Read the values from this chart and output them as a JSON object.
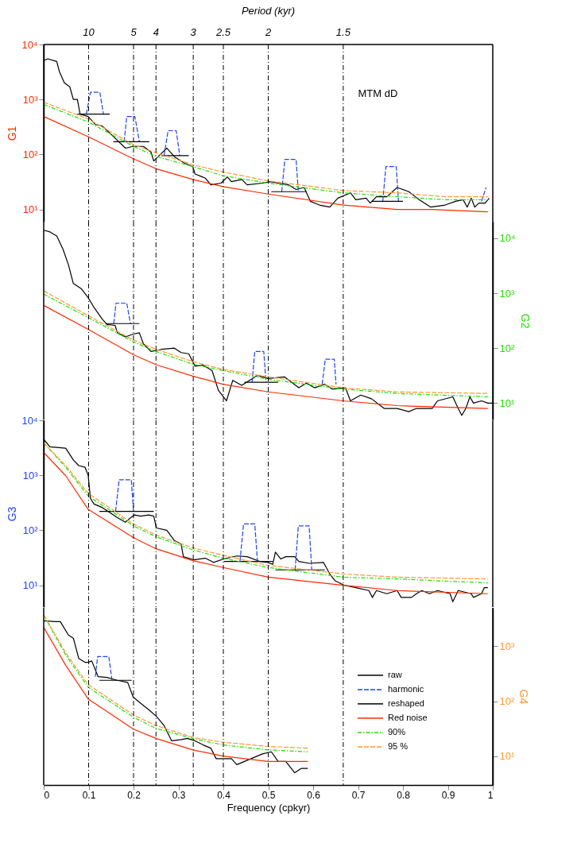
{
  "chart_data": [
    {
      "type": "line",
      "ylabel": "G1",
      "xlim": [
        0,
        1
      ],
      "ylim": [
        6,
        10000
      ],
      "yticks": [
        {
          "value": 10,
          "label": "10¹"
        },
        {
          "value": 100,
          "label": "10²"
        },
        {
          "value": 1000,
          "label": "10³"
        },
        {
          "value": 10000,
          "label": "10⁴"
        }
      ],
      "log": true,
      "tick_labels": "y",
      "annotations": [
        "Period (kyr)",
        "MTM dD",
        {
          "text": "10",
          "x": 0.1,
          "y": 10000
        },
        {
          "text": "5",
          "x": 0.2,
          "y": 10000
        },
        {
          "text": "4",
          "x": 0.25,
          "y": 10000
        },
        {
          "text": "3",
          "x": 0.333,
          "y": 10000
        },
        {
          "text": "2.5",
          "x": 0.4,
          "y": 10000
        },
        {
          "text": "2",
          "x": 0.5,
          "y": 10000
        },
        {
          "text": "1.5",
          "x": 0.667,
          "y": 10000
        }
      ],
      "ref_lines": [
        {
          "axis": "x",
          "value": 0.1,
          "line_style": "dashed"
        },
        {
          "axis": "x",
          "value": 0.2,
          "line_style": "dashed"
        },
        {
          "axis": "x",
          "value": 0.25,
          "line_style": "dashed"
        },
        {
          "axis": "x",
          "value": 0.333,
          "line_style": "dashed"
        },
        {
          "axis": "x",
          "value": 0.4,
          "line_style": "dashed"
        },
        {
          "axis": "x",
          "value": 0.5,
          "line_style": "dashed"
        },
        {
          "axis": "x",
          "value": 0.667,
          "line_style": "dashed"
        }
      ],
      "series": [
        {
          "color": "#000000",
          "line_style": "solid",
          "x": [
            0,
            0.009,
            0.029,
            0.035,
            0.046,
            0.058,
            0.066,
            0.075,
            0.081,
            0.099,
            0.115,
            0.13,
            0.153,
            0.182,
            0.199,
            0.222,
            0.239,
            0.245,
            0.257,
            0.274,
            0.291,
            0.314,
            0.332,
            0.337,
            0.36,
            0.372,
            0.395,
            0.409,
            0.418,
            0.441,
            0.453,
            0.487,
            0.505,
            0.522,
            0.545,
            0.562,
            0.58,
            0.594,
            0.614,
            0.637,
            0.655,
            0.683,
            0.695,
            0.718,
            0.727,
            0.741,
            0.764,
            0.787,
            0.813,
            0.836,
            0.862,
            0.894,
            0.917,
            0.934,
            0.943,
            0.952,
            0.96,
            0.969,
            0.983,
            0.992
          ],
          "values": [
            5100,
            5500,
            4900,
            3200,
            2000,
            1700,
            1000,
            1000,
            540,
            490,
            350,
            330,
            220,
            130,
            140,
            140,
            110,
            76,
            95,
            130,
            91,
            69,
            60,
            44,
            37,
            28,
            30,
            39,
            32,
            35,
            28,
            30,
            32,
            30,
            28,
            23,
            25,
            14,
            12,
            11,
            16,
            20,
            15,
            16,
            13,
            17,
            17,
            25,
            21,
            15,
            11,
            12,
            14,
            15,
            11,
            16,
            11,
            13,
            13,
            16
          ]
        },
        {
          "color": "#2244ee",
          "line_style": "dashed",
          "x": [
            0.095,
            0.104,
            0.125,
            0.133,
            0.155,
            0.179,
            0.185,
            0.203,
            0.213,
            0.24,
            0.268,
            0.277,
            0.295,
            0.303,
            0.4,
            0.53,
            0.537,
            0.562,
            0.567,
            0.65,
            0.755,
            0.762,
            0.785,
            0.79,
            0.9,
            0.975,
            0.985
          ],
          "values": [
            540,
            1350,
            1350,
            540,
            null,
            170,
            490,
            490,
            170,
            null,
            95,
            270,
            270,
            95,
            null,
            21,
            81,
            81,
            21,
            null,
            14,
            60,
            60,
            14,
            null,
            14,
            25
          ]
        },
        {
          "color": "#000000",
          "line_style": "solid",
          "x": [
            0.075,
            0.147,
            0.151,
            0.155,
            0.235,
            0.25,
            0.262,
            0.323,
            0.4,
            0.507,
            0.585,
            0.65,
            0.73,
            0.8
          ],
          "values": [
            540,
            540,
            null,
            170,
            170,
            null,
            95,
            95,
            null,
            21,
            21,
            null,
            14,
            14
          ]
        },
        {
          "color": "#ff2a00",
          "line_style": "solid",
          "x": [
            0,
            0.099,
            0.2,
            0.25,
            0.332,
            0.399,
            0.5,
            0.667,
            0.787,
            0.862,
            0.989
          ],
          "values": [
            490,
            210,
            83,
            55,
            35,
            26,
            19,
            12,
            10,
            10,
            9
          ]
        },
        {
          "color": "#22dd00",
          "line_style": "dotted",
          "x": [
            0,
            0.099,
            0.2,
            0.25,
            0.332,
            0.399,
            0.5,
            0.667,
            0.787,
            0.894,
            0.989
          ],
          "values": [
            810,
            390,
            140,
            92,
            60,
            41,
            30,
            20,
            17,
            15,
            15
          ]
        },
        {
          "color": "#ff9933",
          "line_style": "dashed",
          "x": [
            0,
            0.099,
            0.2,
            0.25,
            0.332,
            0.399,
            0.5,
            0.667,
            0.787,
            0.894,
            0.989
          ],
          "values": [
            890,
            440,
            150,
            107,
            65,
            48,
            33,
            22,
            20,
            17,
            17
          ]
        }
      ]
    },
    {
      "type": "line",
      "ylabel": "G2",
      "xlim": [
        0,
        1
      ],
      "ylim": [
        5,
        20000
      ],
      "yticks": [
        {
          "value": 10,
          "label": "10¹"
        },
        {
          "value": 100,
          "label": "10²"
        },
        {
          "value": 1000,
          "label": "10³"
        },
        {
          "value": 10000,
          "label": "10⁴"
        }
      ],
      "log": true,
      "tick_labels": "y",
      "ref_lines": [
        {
          "axis": "x",
          "value": 0.1,
          "line_style": "dashed"
        },
        {
          "axis": "x",
          "value": 0.2,
          "line_style": "dashed"
        },
        {
          "axis": "x",
          "value": 0.25,
          "line_style": "dashed"
        },
        {
          "axis": "x",
          "value": 0.333,
          "line_style": "dashed"
        },
        {
          "axis": "x",
          "value": 0.4,
          "line_style": "dashed"
        },
        {
          "axis": "x",
          "value": 0.5,
          "line_style": "dashed"
        },
        {
          "axis": "x",
          "value": 0.667,
          "line_style": "dashed"
        }
      ],
      "series": [
        {
          "color": "#000000",
          "line_style": "solid",
          "x": [
            0,
            0.014,
            0.029,
            0.043,
            0.055,
            0.066,
            0.084,
            0.099,
            0.112,
            0.13,
            0.141,
            0.159,
            0.164,
            0.182,
            0.199,
            0.213,
            0.222,
            0.239,
            0.262,
            0.291,
            0.306,
            0.323,
            0.337,
            0.355,
            0.375,
            0.389,
            0.407,
            0.421,
            0.441,
            0.476,
            0.499,
            0.536,
            0.568,
            0.585,
            0.603,
            0.626,
            0.643,
            0.672,
            0.683,
            0.706,
            0.73,
            0.758,
            0.787,
            0.813,
            0.83,
            0.865,
            0.877,
            0.911,
            0.923,
            0.931,
            0.94,
            0.949,
            0.957,
            0.975,
            0.989,
            1
          ],
          "values": [
            14000,
            13000,
            11000,
            6300,
            3300,
            1500,
            1200,
            830,
            550,
            340,
            270,
            260,
            190,
            160,
            180,
            190,
            120,
            87,
            95,
            100,
            83,
            79,
            47,
            49,
            39,
            17,
            11,
            26,
            21,
            32,
            28,
            30,
            19,
            23,
            19,
            22,
            18,
            19,
            11,
            14,
            12,
            8,
            8,
            7,
            8,
            8,
            11,
            13,
            8,
            6,
            8,
            13,
            10,
            11,
            10,
            10
          ]
        },
        {
          "color": "#2244ee",
          "line_style": "dashed",
          "x": [
            0.156,
            0.161,
            0.185,
            0.193,
            0.3,
            0.464,
            0.47,
            0.49,
            0.495,
            0.55,
            0.62,
            0.627,
            0.647,
            0.651
          ],
          "values": [
            280,
            660,
            660,
            280,
            null,
            24,
            87,
            87,
            24,
            null,
            22,
            63,
            63,
            22
          ]
        },
        {
          "color": "#000000",
          "line_style": "solid",
          "x": [
            0.138,
            0.213,
            0.3,
            0.447,
            0.522
          ],
          "values": [
            280,
            280,
            null,
            24,
            24
          ]
        },
        {
          "color": "#ff2a00",
          "line_style": "solid",
          "x": [
            0,
            0.099,
            0.2,
            0.25,
            0.332,
            0.399,
            0.5,
            0.667,
            0.787,
            0.989
          ],
          "values": [
            600,
            220,
            76,
            50,
            31,
            22,
            16,
            11,
            9,
            8
          ]
        },
        {
          "color": "#22dd00",
          "line_style": "dotted",
          "x": [
            0,
            0.099,
            0.2,
            0.25,
            0.332,
            0.399,
            0.5,
            0.667,
            0.787,
            0.989
          ],
          "values": [
            960,
            360,
            130,
            87,
            51,
            39,
            27,
            18,
            15,
            13
          ]
        },
        {
          "color": "#ff9933",
          "line_style": "dashed",
          "x": [
            0,
            0.099,
            0.2,
            0.25,
            0.332,
            0.399,
            0.5,
            0.667,
            0.787,
            0.989
          ],
          "values": [
            1100,
            390,
            140,
            95,
            57,
            41,
            30,
            19,
            16,
            15
          ]
        }
      ]
    },
    {
      "type": "line",
      "ylabel": "G3",
      "xlim": [
        0,
        1
      ],
      "ylim": [
        4,
        10000
      ],
      "yticks": [
        {
          "value": 10,
          "label": "10¹"
        },
        {
          "value": 100,
          "label": "10²"
        },
        {
          "value": 1000,
          "label": "10³"
        },
        {
          "value": 10000,
          "label": "10⁴"
        }
      ],
      "log": true,
      "tick_labels": "y",
      "ref_lines": [
        {
          "axis": "x",
          "value": 0.1,
          "line_style": "dashed"
        },
        {
          "axis": "x",
          "value": 0.2,
          "line_style": "dashed"
        },
        {
          "axis": "x",
          "value": 0.25,
          "line_style": "dashed"
        },
        {
          "axis": "x",
          "value": 0.333,
          "line_style": "dashed"
        },
        {
          "axis": "x",
          "value": 0.4,
          "line_style": "dashed"
        },
        {
          "axis": "x",
          "value": 0.5,
          "line_style": "dashed"
        },
        {
          "axis": "x",
          "value": 0.667,
          "line_style": "dashed"
        }
      ],
      "series": [
        {
          "color": "#000000",
          "line_style": "solid",
          "x": [
            0,
            0.014,
            0.049,
            0.066,
            0.078,
            0.092,
            0.099,
            0.104,
            0.112,
            0.13,
            0.147,
            0.164,
            0.182,
            0.19,
            0.202,
            0.216,
            0.234,
            0.245,
            0.251,
            0.274,
            0.291,
            0.306,
            0.311,
            0.334,
            0.36,
            0.378,
            0.401,
            0.43,
            0.453,
            0.482,
            0.499,
            0.51,
            0.516,
            0.528,
            0.539,
            0.559,
            0.568,
            0.591,
            0.623,
            0.637,
            0.649,
            0.669,
            0.695,
            0.724,
            0.732,
            0.741,
            0.764,
            0.787,
            0.796,
            0.819,
            0.83,
            0.842,
            0.859,
            0.877,
            0.905,
            0.911,
            0.923,
            0.952,
            0.957,
            0.975,
            0.981,
            0.989
          ],
          "values": [
            4500,
            3300,
            3100,
            1900,
            1500,
            1400,
            1000,
            380,
            300,
            260,
            210,
            170,
            140,
            160,
            190,
            180,
            190,
            180,
            110,
            100,
            65,
            56,
            33,
            29,
            31,
            26,
            30,
            34,
            33,
            27,
            26,
            24,
            40,
            30,
            33,
            33,
            27,
            25,
            26,
            16,
            12,
            10,
            9,
            8,
            6,
            8,
            7,
            8,
            6,
            6,
            7,
            8,
            7,
            8,
            7,
            5,
            8,
            7,
            6,
            7,
            9,
            9
          ]
        },
        {
          "color": "#2244ee",
          "line_style": "dashed",
          "x": [
            0.16,
            0.168,
            0.195,
            0.2,
            0.3,
            0.437,
            0.445,
            0.47,
            0.476,
            0.52,
            0.56,
            0.567,
            0.591,
            0.597
          ],
          "values": [
            220,
            830,
            830,
            220,
            null,
            27,
            130,
            130,
            27,
            null,
            19,
            120,
            120,
            19
          ]
        },
        {
          "color": "#000000",
          "line_style": "solid",
          "x": [
            0.124,
            0.245,
            0.3,
            0.401,
            0.51,
            0.513,
            0.516,
            0.626
          ],
          "values": [
            220,
            220,
            null,
            27,
            27,
            null,
            19,
            19
          ]
        },
        {
          "color": "#ff2a00",
          "line_style": "solid",
          "x": [
            0,
            0.049,
            0.099,
            0.2,
            0.25,
            0.332,
            0.399,
            0.5,
            0.667,
            0.787,
            0.989
          ],
          "values": [
            2600,
            980,
            240,
            73,
            46,
            28,
            21,
            14,
            10,
            8,
            7
          ]
        },
        {
          "color": "#22dd00",
          "line_style": "dotted",
          "x": [
            0,
            0.049,
            0.099,
            0.2,
            0.25,
            0.332,
            0.399,
            0.5,
            0.667,
            0.787,
            0.989
          ],
          "values": [
            3900,
            1400,
            420,
            120,
            76,
            44,
            31,
            21,
            14,
            13,
            11
          ]
        },
        {
          "color": "#ff9933",
          "line_style": "dashed",
          "x": [
            0,
            0.049,
            0.099,
            0.2,
            0.25,
            0.332,
            0.399,
            0.5,
            0.667,
            0.787,
            0.989
          ],
          "values": [
            3900,
            1500,
            470,
            130,
            82,
            48,
            35,
            23,
            16,
            14,
            13
          ]
        }
      ]
    },
    {
      "type": "line",
      "ylabel": "G4",
      "xlabel": "Frequency (cpkyr)",
      "xlim": [
        0,
        1
      ],
      "xticks": [
        0,
        0.1,
        0.2,
        0.3,
        0.4,
        0.5,
        0.6,
        0.7,
        0.8,
        0.9,
        1
      ],
      "ylim": [
        3,
        5000
      ],
      "yticks": [
        {
          "value": 10,
          "label": "10¹"
        },
        {
          "value": 100,
          "label": "10²"
        },
        {
          "value": 1000,
          "label": "10³"
        }
      ],
      "log": true,
      "legend": "bottom right",
      "ref_lines": [
        {
          "axis": "x",
          "value": 0.1,
          "line_style": "dashed"
        },
        {
          "axis": "x",
          "value": 0.2,
          "line_style": "dashed"
        },
        {
          "axis": "x",
          "value": 0.25,
          "line_style": "dashed"
        },
        {
          "axis": "x",
          "value": 0.333,
          "line_style": "dashed"
        },
        {
          "axis": "x",
          "value": 0.4,
          "line_style": "dashed"
        },
        {
          "axis": "x",
          "value": 0.5,
          "line_style": "dashed"
        },
        {
          "axis": "x",
          "value": 0.667,
          "line_style": "dashed"
        }
      ],
      "series": [
        {
          "name": "raw",
          "color": "#000000",
          "line_style": "solid",
          "x": [
            0,
            0.026,
            0.037,
            0.055,
            0.066,
            0.078,
            0.092,
            0.099,
            0.107,
            0.121,
            0.141,
            0.164,
            0.187,
            0.199,
            0.21,
            0.234,
            0.251,
            0.268,
            0.285,
            0.306,
            0.32,
            0.337,
            0.355,
            0.372,
            0.384,
            0.401,
            0.418,
            0.43,
            0.447,
            0.487,
            0.507,
            0.522,
            0.539,
            0.559,
            0.574,
            0.588
          ],
          "values": [
            2900,
            2800,
            2800,
            1600,
            1400,
            600,
            510,
            510,
            540,
            280,
            270,
            240,
            220,
            120,
            100,
            70,
            53,
            36,
            19,
            20,
            21,
            19,
            16,
            14,
            9,
            9,
            9,
            7,
            8,
            11,
            12,
            8,
            8,
            5,
            6,
            6
          ]
        },
        {
          "name": "harmonic",
          "color": "#2244ee",
          "line_style": "dashed",
          "x": [
            0.115,
            0.12,
            0.145,
            0.152
          ],
          "values": [
            280,
            650,
            650,
            240
          ]
        },
        {
          "name": "reshaped",
          "color": "#000000",
          "line_style": "solid",
          "x": [
            0.124,
            0.196
          ],
          "values": [
            240,
            240
          ]
        },
        {
          "name": "Red noise",
          "color": "#ff2a00",
          "line_style": "solid",
          "x": [
            0,
            0.049,
            0.099,
            0.2,
            0.25,
            0.332,
            0.399,
            0.5,
            0.588
          ],
          "values": [
            2200,
            450,
            110,
            31,
            21,
            13,
            10,
            8,
            8
          ]
        },
        {
          "name": "90%",
          "color": "#22dd00",
          "line_style": "dotted",
          "x": [
            0,
            0.049,
            0.099,
            0.2,
            0.25,
            0.332,
            0.399,
            0.5,
            0.588
          ],
          "values": [
            3700,
            690,
            180,
            51,
            32,
            21,
            16,
            13,
            12
          ]
        },
        {
          "name": "95 %",
          "color": "#ff9933",
          "line_style": "dashed",
          "x": [
            0,
            0.049,
            0.099,
            0.2,
            0.25,
            0.332,
            0.399,
            0.5,
            0.588
          ],
          "values": [
            3700,
            760,
            200,
            56,
            36,
            22,
            18,
            15,
            14
          ]
        }
      ]
    }
  ]
}
